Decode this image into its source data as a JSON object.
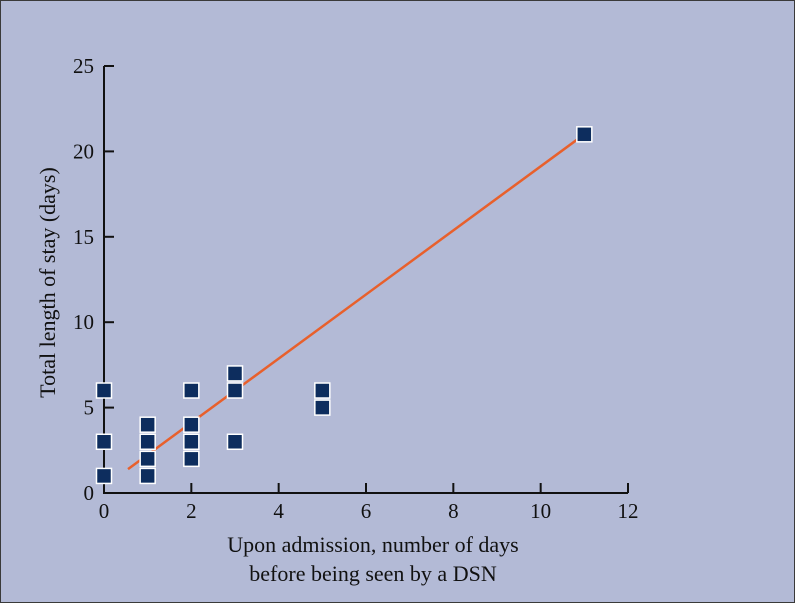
{
  "chart_data": {
    "type": "scatter",
    "title": "",
    "xlabel_lines": [
      "Upon admission, number of days",
      "before being seen by a DSN"
    ],
    "ylabel": "Total length of stay (days)",
    "xlim": [
      0,
      12
    ],
    "ylim": [
      0,
      25
    ],
    "x_ticks": [
      "0",
      "2",
      "4",
      "6",
      "8",
      "10",
      "12"
    ],
    "y_ticks": [
      "0",
      "5",
      "10",
      "15",
      "20",
      "25"
    ],
    "grid": false,
    "points": [
      {
        "x": 0,
        "y": 6
      },
      {
        "x": 0,
        "y": 3
      },
      {
        "x": 0,
        "y": 1
      },
      {
        "x": 1,
        "y": 4
      },
      {
        "x": 1,
        "y": 3
      },
      {
        "x": 1,
        "y": 2
      },
      {
        "x": 1,
        "y": 1
      },
      {
        "x": 2,
        "y": 6
      },
      {
        "x": 2,
        "y": 4
      },
      {
        "x": 2,
        "y": 3
      },
      {
        "x": 2,
        "y": 2
      },
      {
        "x": 3,
        "y": 7
      },
      {
        "x": 3,
        "y": 6
      },
      {
        "x": 3,
        "y": 3
      },
      {
        "x": 5,
        "y": 6
      },
      {
        "x": 5,
        "y": 5
      },
      {
        "x": 11,
        "y": 21
      }
    ],
    "trend_line": {
      "x": [
        0.55,
        11
      ],
      "y": [
        1.4,
        21
      ]
    },
    "colors": {
      "background": "#b3bad6",
      "marker_fill": "#0d2d5e",
      "marker_edge": "#ffffff",
      "trend_line": "#e8602c",
      "axis": "#111111"
    }
  }
}
